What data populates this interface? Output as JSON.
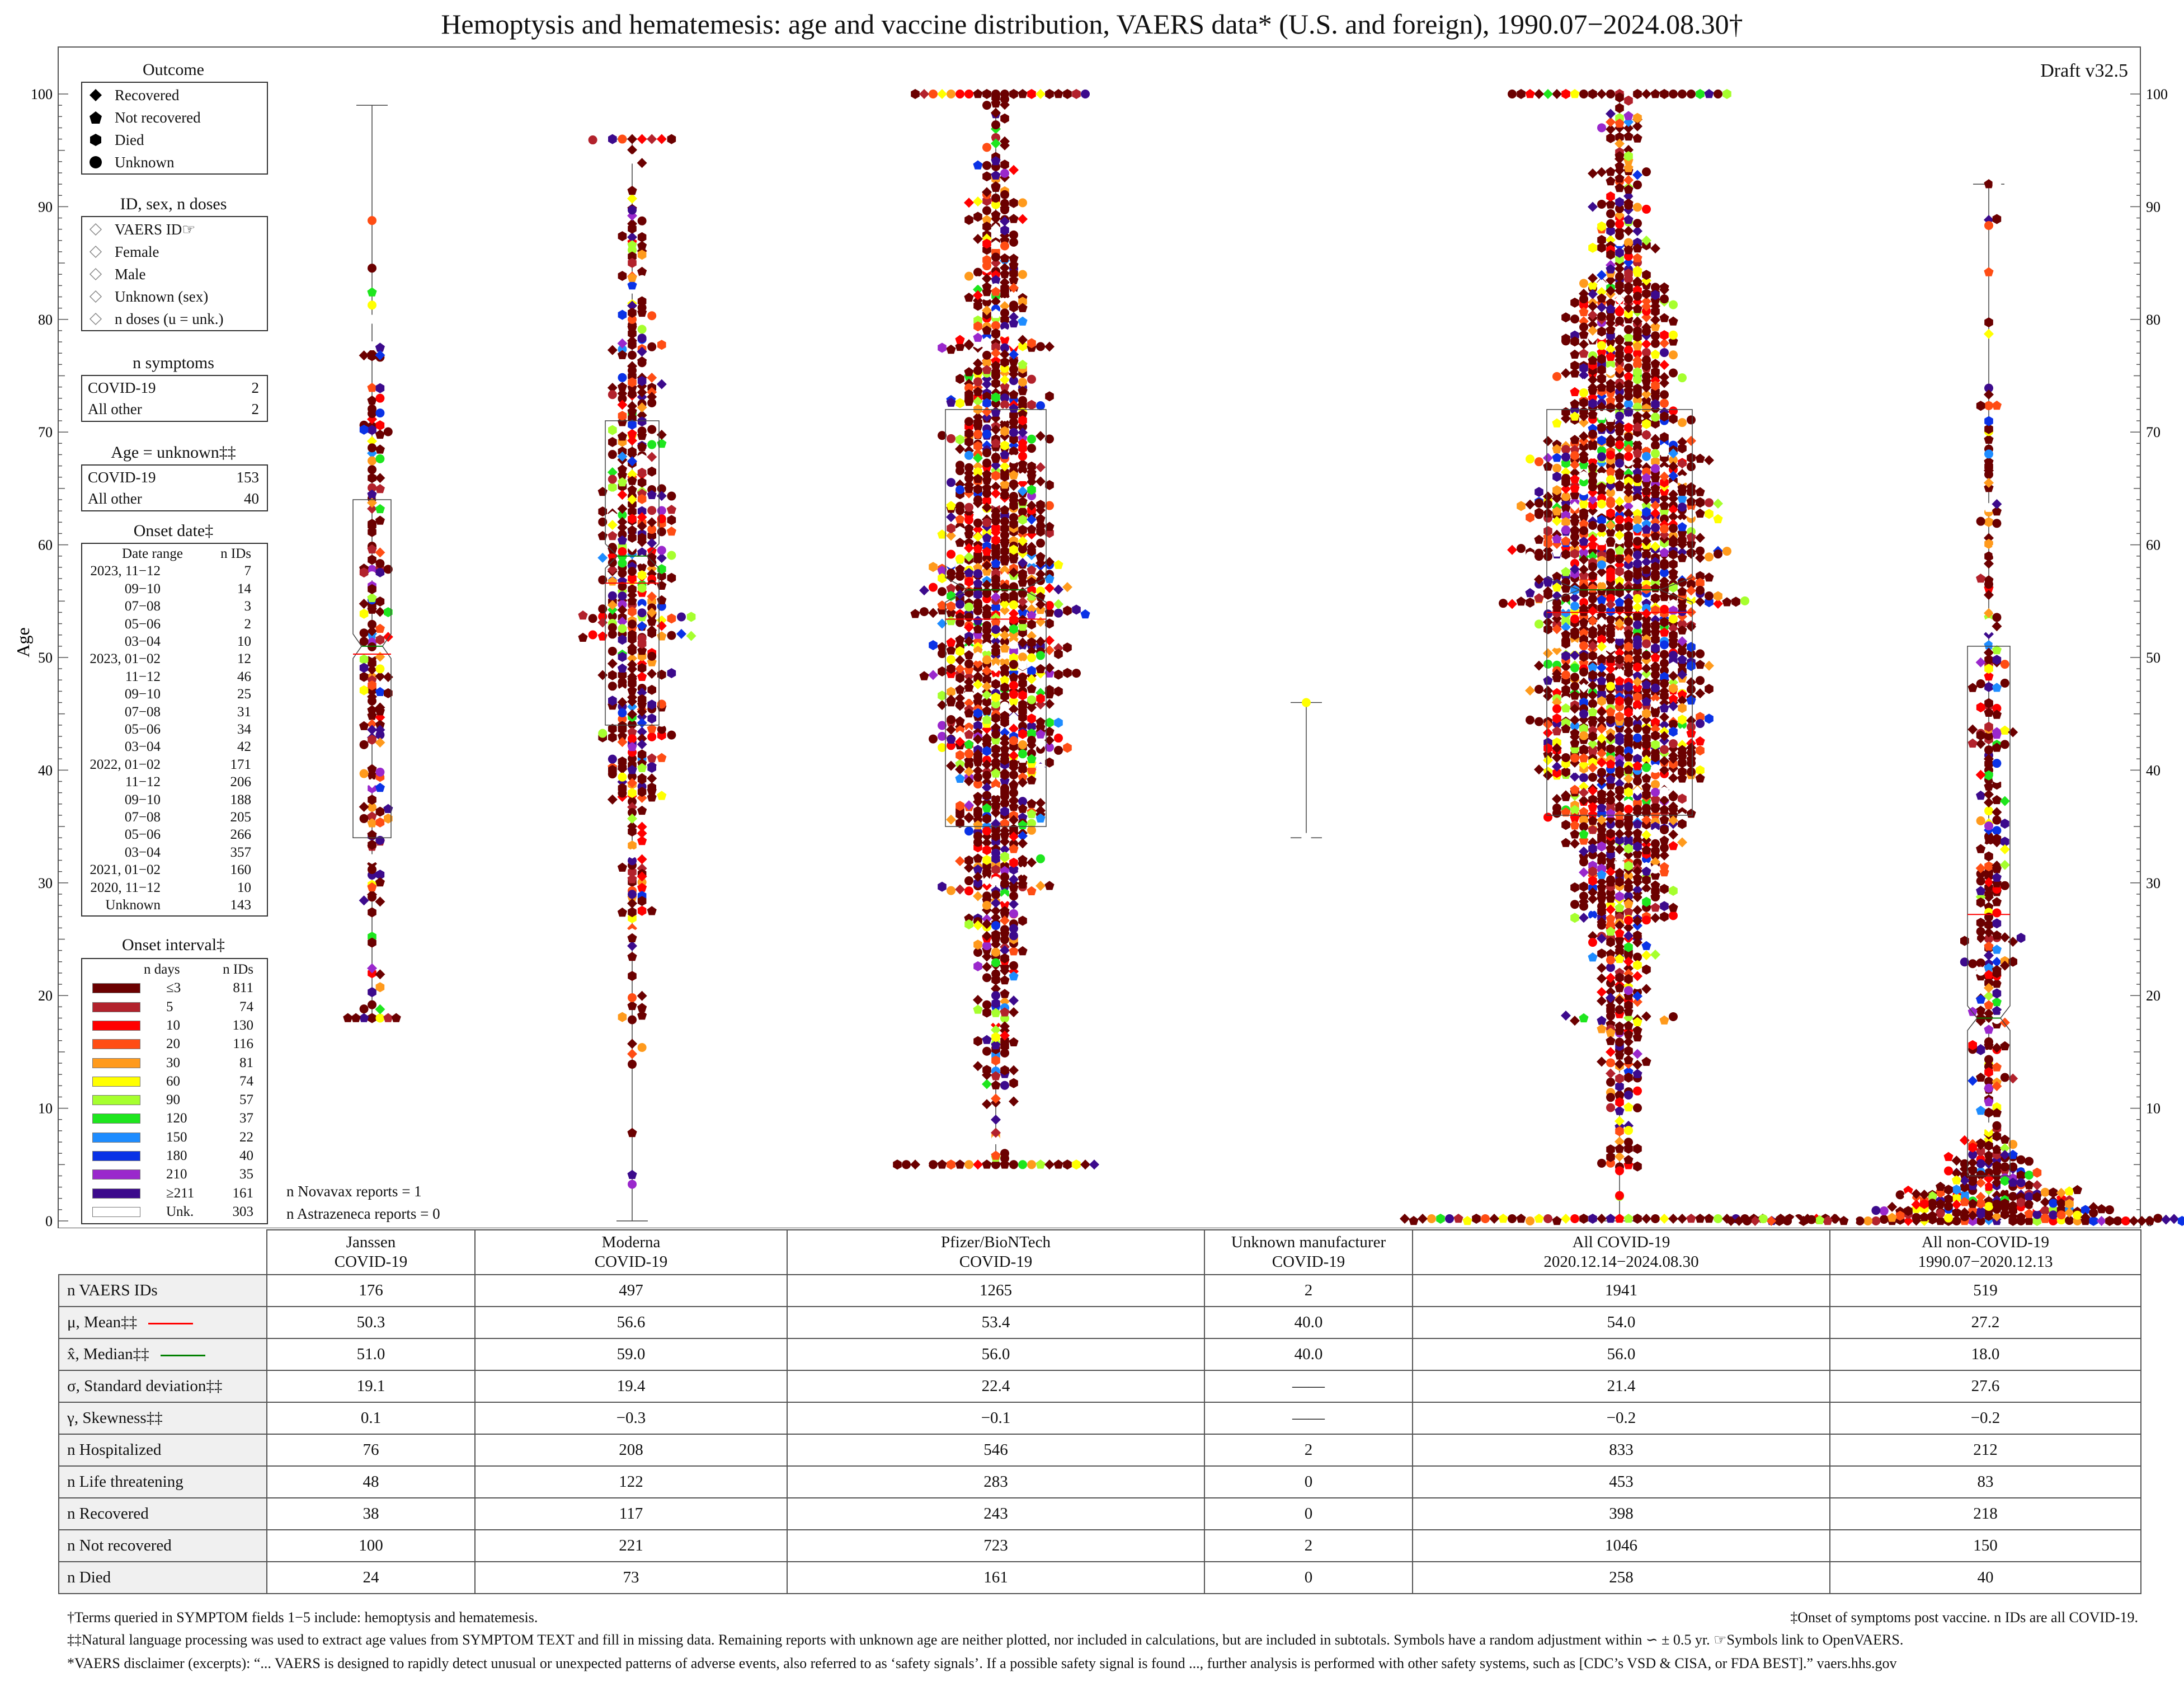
{
  "title": "Hemoptysis and hematemesis: age and vaccine distribution, VAERS data* (U.S. and foreign), 1990.07−2024.08.30†",
  "draft": "Draft v32.5",
  "colors": {
    "onset": [
      "#6b0000",
      "#b2222c",
      "#ff0000",
      "#ff4d14",
      "#ff9a1c",
      "#ffff00",
      "#a6ff2e",
      "#1ee61e",
      "#1e8cff",
      "#0a32e6",
      "#9a28cc",
      "#3c0a8c",
      "#ffffff"
    ],
    "mean": "#ff0000",
    "median": "#008000"
  },
  "chart_data": {
    "type": "scatter",
    "subtype": "beeswarm with box plots",
    "title": "Hemoptysis and hematemesis: age and vaccine distribution, VAERS data* (U.S. and foreign), 1990.07−2024.08.30†",
    "ylabel": "Age",
    "ylim": [
      0,
      100
    ],
    "yticks": [
      0,
      10,
      20,
      30,
      40,
      50,
      60,
      70,
      80,
      90,
      100
    ],
    "groups": [
      {
        "name": "Janssen COVID-19",
        "n": 176,
        "mean": 50.3,
        "median": 51.0,
        "sd": 19.1,
        "q1": 34,
        "q3": 64,
        "min": 18,
        "max": 99
      },
      {
        "name": "Moderna COVID-19",
        "n": 497,
        "mean": 56.6,
        "median": 59.0,
        "sd": 19.4,
        "q1": 44,
        "q3": 71,
        "min": 0,
        "max": 96
      },
      {
        "name": "Pfizer/BioNTech COVID-19",
        "n": 1265,
        "mean": 53.4,
        "median": 56.0,
        "sd": 22.4,
        "q1": 35,
        "q3": 72,
        "min": 5,
        "max": 100
      },
      {
        "name": "Unknown manufacturer COVID-19",
        "n": 2,
        "mean": 40.0,
        "median": 40.0,
        "sd": null,
        "q1": 34,
        "q3": 46,
        "min": 34,
        "max": 46
      },
      {
        "name": "All COVID-19 2020.12.14−2024.08.30",
        "n": 1941,
        "mean": 54.0,
        "median": 56.0,
        "sd": 21.4,
        "q1": 36,
        "q3": 72,
        "min": 0,
        "max": 100
      },
      {
        "name": "All non-COVID-19 1990.07−2020.12.13",
        "n": 519,
        "mean": 27.2,
        "median": 18.0,
        "sd": 27.6,
        "q1": 4,
        "q3": 51,
        "min": 0,
        "max": 92
      }
    ]
  },
  "legend": {
    "outcome": {
      "title": "Outcome",
      "items": [
        {
          "label": "Recovered",
          "icon": "diamond-icon"
        },
        {
          "label": "Not recovered",
          "icon": "pentagon-icon"
        },
        {
          "label": "Died",
          "icon": "hexagon-icon"
        },
        {
          "label": "Unknown",
          "icon": "circle-icon"
        }
      ]
    },
    "id_sex": {
      "title": "ID, sex, n doses",
      "items": [
        "VAERS ID☞",
        "Female",
        "Male",
        "Unknown (sex)",
        "n doses (u = unk.)"
      ]
    },
    "n_symptoms": {
      "title": "n symptoms",
      "rows": [
        {
          "k": "COVID-19",
          "v": "2"
        },
        {
          "k": "All other",
          "v": "2"
        }
      ]
    },
    "age_unknown": {
      "title": "Age = unknown‡‡",
      "rows": [
        {
          "k": "COVID-19",
          "v": "153"
        },
        {
          "k": "All other",
          "v": "40"
        }
      ]
    },
    "onset_date": {
      "title": "Onset date‡",
      "header": {
        "k": "Date range",
        "v": "n IDs"
      },
      "rows": [
        {
          "k": "2023, 11−12",
          "v": "7"
        },
        {
          "k": "09−10",
          "v": "14"
        },
        {
          "k": "07−08",
          "v": "3"
        },
        {
          "k": "05−06",
          "v": "2"
        },
        {
          "k": "03−04",
          "v": "10"
        },
        {
          "k": "2023, 01−02",
          "v": "12"
        },
        {
          "k": "11−12",
          "v": "46"
        },
        {
          "k": "09−10",
          "v": "25"
        },
        {
          "k": "07−08",
          "v": "31"
        },
        {
          "k": "05−06",
          "v": "34"
        },
        {
          "k": "03−04",
          "v": "42"
        },
        {
          "k": "2022, 01−02",
          "v": "171"
        },
        {
          "k": "11−12",
          "v": "206"
        },
        {
          "k": "09−10",
          "v": "188"
        },
        {
          "k": "07−08",
          "v": "205"
        },
        {
          "k": "05−06",
          "v": "266"
        },
        {
          "k": "03−04",
          "v": "357"
        },
        {
          "k": "2021, 01−02",
          "v": "160"
        },
        {
          "k": "2020, 11−12",
          "v": "10"
        },
        {
          "k": "Unknown",
          "v": "143"
        }
      ]
    },
    "onset_interval": {
      "title": "Onset interval‡",
      "header": {
        "k": "n days",
        "v": "n IDs"
      },
      "rows": [
        {
          "k": "≤3",
          "v": "811"
        },
        {
          "k": "5",
          "v": "74"
        },
        {
          "k": "10",
          "v": "130"
        },
        {
          "k": "20",
          "v": "116"
        },
        {
          "k": "30",
          "v": "81"
        },
        {
          "k": "60",
          "v": "74"
        },
        {
          "k": "90",
          "v": "57"
        },
        {
          "k": "120",
          "v": "37"
        },
        {
          "k": "150",
          "v": "22"
        },
        {
          "k": "180",
          "v": "40"
        },
        {
          "k": "210",
          "v": "35"
        },
        {
          "k": "≥211",
          "v": "161"
        },
        {
          "k": "Unk.",
          "v": "303"
        }
      ]
    }
  },
  "notes": {
    "novavax": "n Novavax reports = 1",
    "astrazeneca": "n Astrazeneca reports = 0"
  },
  "table": {
    "headers": [
      [
        "Janssen",
        "COVID-19"
      ],
      [
        "Moderna",
        "COVID-19"
      ],
      [
        "Pfizer/BioNTech",
        "COVID-19"
      ],
      [
        "Unknown manufacturer",
        "COVID-19"
      ],
      [
        "All COVID-19",
        "2020.12.14−2024.08.30"
      ],
      [
        "All non-COVID-19",
        "1990.07−2020.12.13"
      ]
    ],
    "rows": [
      {
        "label": "n VAERS IDs",
        "values": [
          "176",
          "497",
          "1265",
          "2",
          "1941",
          "519"
        ]
      },
      {
        "label": "μ, Mean‡‡",
        "values": [
          "50.3",
          "56.6",
          "53.4",
          "40.0",
          "54.0",
          "27.2"
        ]
      },
      {
        "label": "x̂, Median‡‡",
        "values": [
          "51.0",
          "59.0",
          "56.0",
          "40.0",
          "56.0",
          "18.0"
        ]
      },
      {
        "label": "σ, Standard deviation‡‡",
        "values": [
          "19.1",
          "19.4",
          "22.4",
          "——",
          "21.4",
          "27.6"
        ]
      },
      {
        "label": "γ, Skewness‡‡",
        "values": [
          "0.1",
          "−0.3",
          "−0.1",
          "——",
          "−0.2",
          "−0.2"
        ]
      },
      {
        "label": "n Hospitalized",
        "values": [
          "76",
          "208",
          "546",
          "2",
          "833",
          "212"
        ]
      },
      {
        "label": "n Life threatening",
        "values": [
          "48",
          "122",
          "283",
          "0",
          "453",
          "83"
        ]
      },
      {
        "label": "n Recovered",
        "values": [
          "38",
          "117",
          "243",
          "0",
          "398",
          "218"
        ]
      },
      {
        "label": "n Not recovered",
        "values": [
          "100",
          "221",
          "723",
          "2",
          "1046",
          "150"
        ]
      },
      {
        "label": "n Died",
        "values": [
          "24",
          "73",
          "161",
          "0",
          "258",
          "40"
        ]
      }
    ]
  },
  "footnotes": {
    "terms": "†Terms queried in SYMPTOM fields 1−5 include: hemoptysis and hematemesis.",
    "onset": "‡Onset of symptoms post vaccine. n IDs are all COVID-19.",
    "nlp": "‡‡Natural language processing was used to extract age values from SYMPTOM TEXT and fill in missing data. Remaining reports with unknown age are neither plotted, nor included in calculations, but are included in subtotals. Symbols have a random adjustment within ∽ ± 0.5 yr.   ☞Symbols link to OpenVAERS.",
    "disclaimer": "*VAERS disclaimer (excerpts): “... VAERS is designed to rapidly detect unusual or unexpected patterns of adverse events, also referred to as ‘safety signals’. If a possible safety signal is found ..., further analysis is performed with other safety systems, such as [CDC’s VSD & CISA, or FDA BEST].”   vaers.hhs.gov"
  }
}
